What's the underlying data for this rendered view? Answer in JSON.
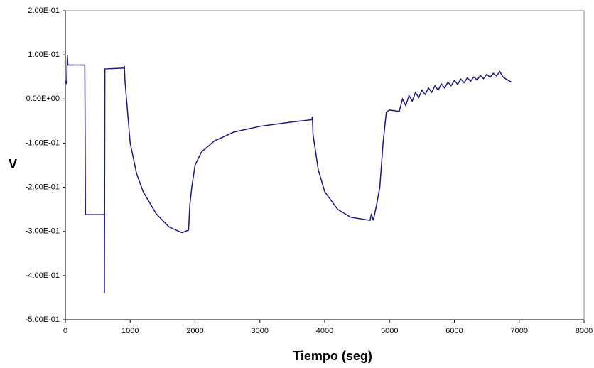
{
  "chart_data": {
    "type": "line",
    "x_label": "Tiempo (seg)",
    "y_label": "V",
    "x": [
      0,
      20,
      30,
      40,
      300,
      310,
      600,
      602,
      605,
      610,
      900,
      910,
      920,
      1000,
      1100,
      1200,
      1400,
      1600,
      1800,
      1900,
      1920,
      1950,
      2000,
      2100,
      2300,
      2600,
      3000,
      3500,
      3800,
      3810,
      3820,
      3900,
      4000,
      4200,
      4400,
      4700,
      4720,
      4750,
      4800,
      4850,
      4900,
      4950,
      5000,
      5150,
      5200,
      5250,
      5300,
      5350,
      5400,
      5450,
      5500,
      5550,
      5600,
      5650,
      5700,
      5750,
      5800,
      5850,
      5900,
      5950,
      6000,
      6050,
      6100,
      6150,
      6200,
      6250,
      6300,
      6350,
      6400,
      6450,
      6500,
      6550,
      6600,
      6650,
      6700,
      6750,
      6800,
      6880
    ],
    "series": [
      {
        "color": "#1a1a80",
        "values": [
          0.04,
          0.035,
          0.1,
          0.077,
          0.077,
          -0.262,
          -0.262,
          -0.44,
          -0.26,
          0.068,
          0.07,
          0.075,
          0.04,
          -0.1,
          -0.17,
          -0.21,
          -0.26,
          -0.29,
          -0.303,
          -0.297,
          -0.24,
          -0.2,
          -0.15,
          -0.12,
          -0.095,
          -0.075,
          -0.062,
          -0.052,
          -0.047,
          -0.04,
          -0.08,
          -0.16,
          -0.21,
          -0.25,
          -0.268,
          -0.275,
          -0.26,
          -0.275,
          -0.24,
          -0.2,
          -0.1,
          -0.03,
          -0.025,
          -0.028,
          0.0,
          -0.015,
          0.008,
          -0.005,
          0.015,
          0.003,
          0.02,
          0.01,
          0.025,
          0.015,
          0.03,
          0.02,
          0.034,
          0.025,
          0.038,
          0.03,
          0.042,
          0.033,
          0.045,
          0.037,
          0.048,
          0.04,
          0.05,
          0.043,
          0.053,
          0.046,
          0.056,
          0.049,
          0.058,
          0.052,
          0.062,
          0.05,
          0.045,
          0.038
        ]
      }
    ],
    "xlim": [
      0,
      8000
    ],
    "xticks": [
      0,
      1000,
      2000,
      3000,
      4000,
      5000,
      6000,
      7000,
      8000
    ],
    "ylim": [
      -0.5,
      0.2
    ],
    "yticks": [
      {
        "value": -0.5,
        "label": "-5.00E-01"
      },
      {
        "value": -0.4,
        "label": "-4.00E-01"
      },
      {
        "value": -0.3,
        "label": "-3.00E-01"
      },
      {
        "value": -0.2,
        "label": "-2.00E-01"
      },
      {
        "value": -0.1,
        "label": "-1.00E-01"
      },
      {
        "value": 0,
        "label": "0.00E+00"
      },
      {
        "value": 0.1,
        "label": "1.00E-01"
      },
      {
        "value": 0.2,
        "label": "2.00E-01"
      }
    ],
    "grid": false
  }
}
